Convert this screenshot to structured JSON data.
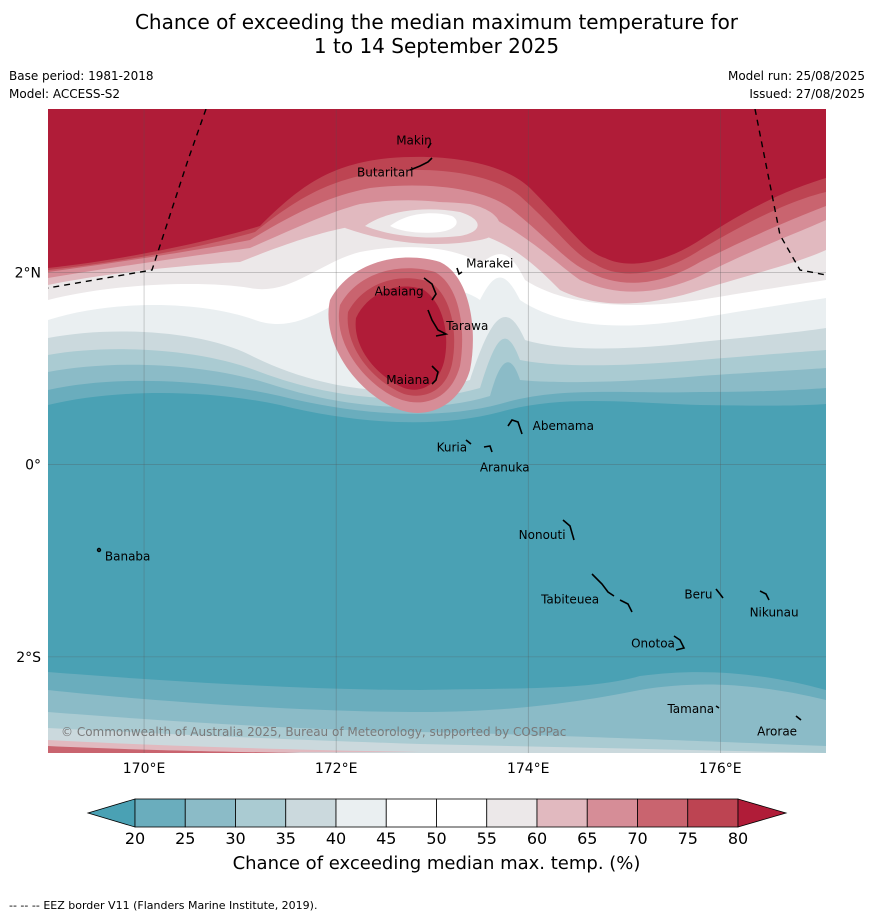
{
  "title": {
    "line1": "Chance of exceeding the median maximum temperature for",
    "line2": "1 to 14 September 2025"
  },
  "meta": {
    "base_period": "Base period: 1981-2018",
    "model": "Model: ACCESS-S2",
    "model_run": "Model run: 25/08/2025",
    "issued": "Issued: 27/08/2025"
  },
  "map": {
    "lon_range": [
      169,
      177.1
    ],
    "lat_range": [
      -3,
      3.7
    ],
    "lon_ticks": [
      {
        "value": 170,
        "label": "170°E"
      },
      {
        "value": 172,
        "label": "172°E"
      },
      {
        "value": 174,
        "label": "174°E"
      },
      {
        "value": 176,
        "label": "176°E"
      }
    ],
    "lat_ticks": [
      {
        "value": 2,
        "label": "2°N"
      },
      {
        "value": 0,
        "label": "0°"
      },
      {
        "value": -2,
        "label": "2°S"
      }
    ],
    "places": [
      {
        "name": "Makin",
        "lon": 173.0,
        "lat": 3.35
      },
      {
        "name": "Butaritari",
        "lon": 172.8,
        "lat": 3.1
      },
      {
        "name": "Marakei",
        "lon": 173.27,
        "lat": 2.0
      },
      {
        "name": "Abaiang",
        "lon": 172.9,
        "lat": 1.8
      },
      {
        "name": "Tarawa",
        "lon": 173.0,
        "lat": 1.4
      },
      {
        "name": "Maiana",
        "lon": 173.0,
        "lat": 0.9
      },
      {
        "name": "Kuria",
        "lon": 173.4,
        "lat": 0.22
      },
      {
        "name": "Aranuka",
        "lon": 173.6,
        "lat": 0.16
      },
      {
        "name": "Abemama",
        "lon": 173.9,
        "lat": 0.4
      },
      {
        "name": "Nonouti",
        "lon": 174.4,
        "lat": -0.65
      },
      {
        "name": "Banaba",
        "lon": 169.53,
        "lat": -0.87
      },
      {
        "name": "Tabiteuea",
        "lon": 174.8,
        "lat": -1.3
      },
      {
        "name": "Beru",
        "lon": 176.0,
        "lat": -1.33
      },
      {
        "name": "Nikunau",
        "lon": 176.45,
        "lat": -1.35
      },
      {
        "name": "Onotoa",
        "lon": 175.55,
        "lat": -1.8
      },
      {
        "name": "Tamana",
        "lon": 175.97,
        "lat": -2.5
      },
      {
        "name": "Arorae",
        "lon": 176.8,
        "lat": -2.65
      }
    ],
    "eez_border_label": "EEZ border V11 (Flanders Marine Institute, 2019).",
    "copyright": "© Commonwealth of Australia 2025, Bureau of Meteorology, supported by COSPPac",
    "field_summary": "Probability mostly 60-80% and above north of about 1.5°N, with a local maximum over Abaiang–Tarawa–Maiana, a weaker pocket near 2.6°N 173°E, and 20-30% or below over the equator and south; 25-35% bands near 3°S."
  },
  "colorbar": {
    "title": "Chance of exceeding median max. temp. (%)",
    "tick_labels": [
      "20",
      "25",
      "30",
      "35",
      "40",
      "45",
      "50",
      "55",
      "60",
      "65",
      "70",
      "75",
      "80"
    ],
    "levels": [
      20,
      25,
      30,
      35,
      40,
      45,
      50,
      55,
      60,
      65,
      70,
      75,
      80
    ],
    "colors": {
      "below": "#4aa1b4",
      "bins": [
        "#6aadbd",
        "#8bbbc7",
        "#aacbd2",
        "#cbd9dd",
        "#eaeff1",
        "#ffffff",
        "#ffffff",
        "#ece8e9",
        "#e1b9bf",
        "#d68d97",
        "#c9646f",
        "#bd4452"
      ],
      "above": "#b01c38"
    }
  },
  "footnote": {
    "dashes": "--  --  --",
    "text": "EEZ border V11 (Flanders Marine Institute, 2019)."
  }
}
